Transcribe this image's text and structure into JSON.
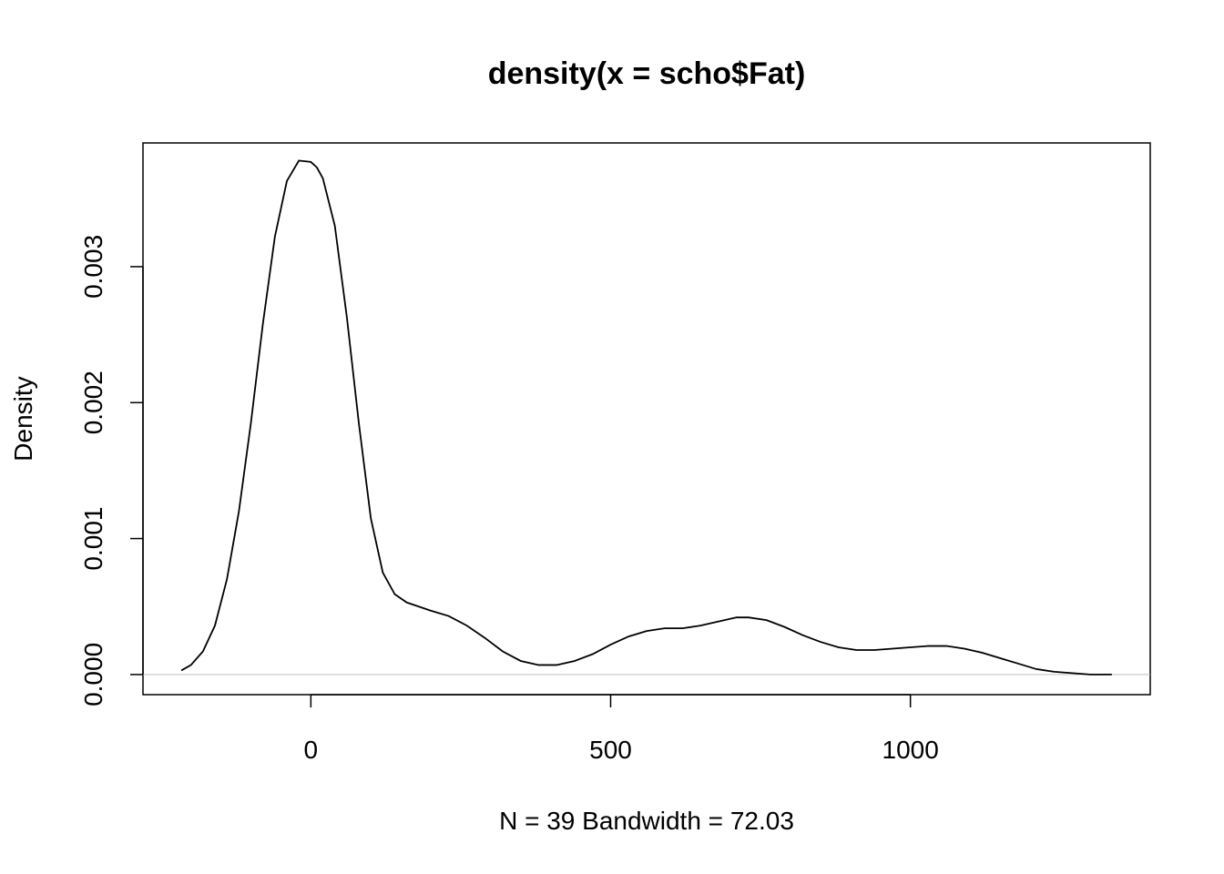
{
  "chart_data": {
    "type": "line",
    "title": "density(x = scho$Fat)",
    "xlabel": "N = 39   Bandwidth = 72.03",
    "ylabel": "Density",
    "xlim": [
      -280,
      1400
    ],
    "ylim": [
      -0.000148,
      0.00391
    ],
    "x_ticks": [
      0,
      500,
      1000
    ],
    "x_tick_labels": [
      "0",
      "500",
      "1000"
    ],
    "y_ticks": [
      0.0,
      0.001,
      0.002,
      0.003
    ],
    "y_tick_labels": [
      "0.000",
      "0.001",
      "0.002",
      "0.003"
    ],
    "baseline": 0,
    "grid": false,
    "series": [
      {
        "x": [
          -216,
          -200,
          -180,
          -160,
          -140,
          -120,
          -100,
          -80,
          -60,
          -40,
          -20,
          0,
          10,
          20,
          40,
          60,
          80,
          100,
          120,
          140,
          160,
          180,
          200,
          230,
          260,
          290,
          320,
          350,
          380,
          410,
          440,
          470,
          500,
          530,
          560,
          590,
          620,
          650,
          680,
          710,
          730,
          760,
          790,
          820,
          850,
          880,
          910,
          940,
          970,
          1000,
          1030,
          1060,
          1090,
          1120,
          1150,
          1180,
          1210,
          1240,
          1270,
          1300,
          1336
        ],
        "y": [
          3e-05,
          7e-05,
          0.00017,
          0.00036,
          0.0007,
          0.0012,
          0.00185,
          0.00258,
          0.00322,
          0.00363,
          0.00378,
          0.00377,
          0.00373,
          0.00365,
          0.0033,
          0.00263,
          0.00185,
          0.00115,
          0.00075,
          0.00059,
          0.00053,
          0.0005,
          0.00047,
          0.00043,
          0.00036,
          0.00027,
          0.00017,
          0.0001,
          7e-05,
          7e-05,
          0.0001,
          0.00015,
          0.00022,
          0.00028,
          0.00032,
          0.00034,
          0.00034,
          0.00036,
          0.00039,
          0.00042,
          0.00042,
          0.0004,
          0.00035,
          0.00029,
          0.00024,
          0.0002,
          0.00018,
          0.00018,
          0.00019,
          0.0002,
          0.00021,
          0.00021,
          0.00019,
          0.00016,
          0.00012,
          8e-05,
          4e-05,
          2e-05,
          1e-05,
          0.0,
          0.0
        ]
      }
    ]
  }
}
